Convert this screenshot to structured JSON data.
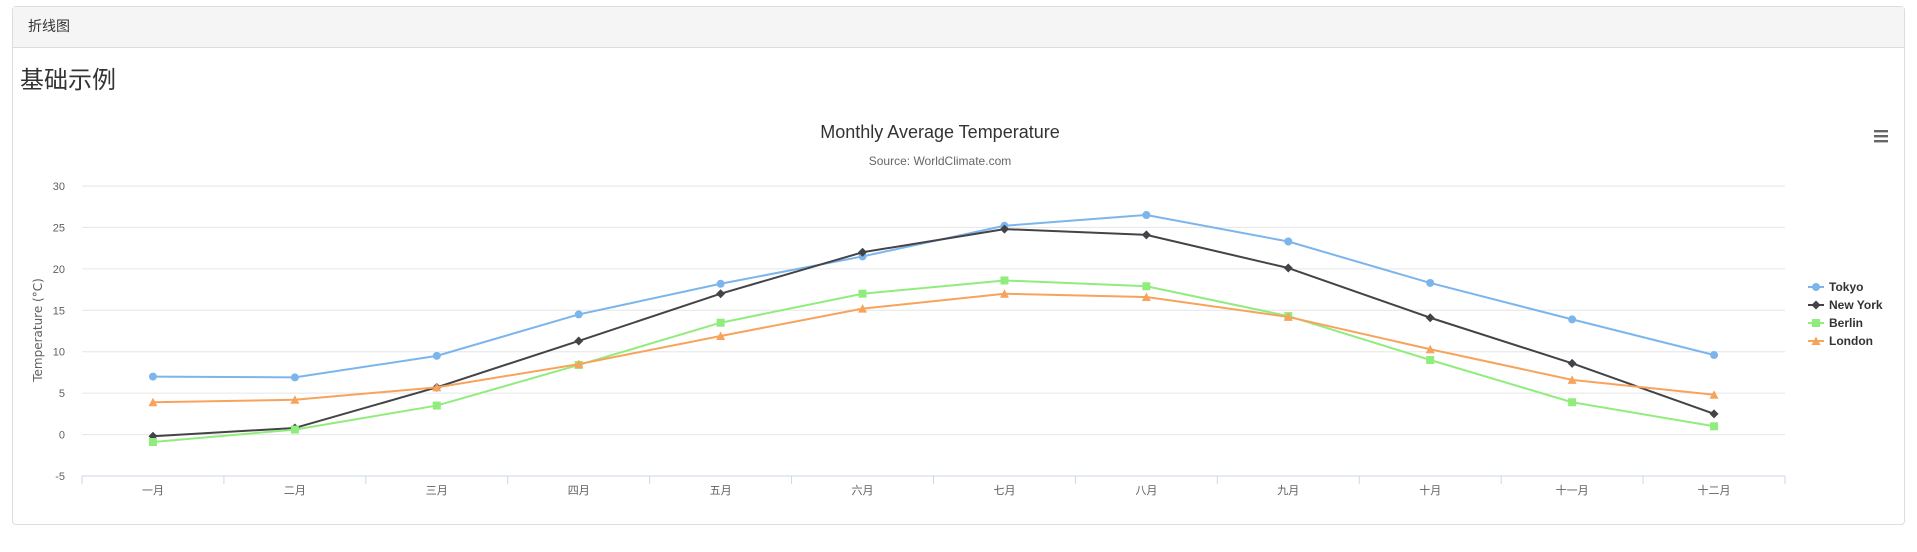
{
  "panel": {
    "heading": "折线图"
  },
  "section": {
    "title": "基础示例"
  },
  "menu": {
    "icon": "hamburger-menu-icon"
  },
  "chart_data": {
    "type": "line",
    "title": "Monthly Average Temperature",
    "subtitle": "Source: WorldClimate.com",
    "ylabel": "Temperature (°C)",
    "xlabel": "",
    "categories": [
      "一月",
      "二月",
      "三月",
      "四月",
      "五月",
      "六月",
      "七月",
      "八月",
      "九月",
      "十月",
      "十一月",
      "十二月"
    ],
    "yticks": [
      -5,
      0,
      5,
      10,
      15,
      20,
      25,
      30
    ],
    "ylim": [
      -5,
      30
    ],
    "grid": true,
    "legend_position": "right",
    "series": [
      {
        "name": "Tokyo",
        "color": "#7cb5ec",
        "marker": "circle",
        "values": [
          7.0,
          6.9,
          9.5,
          14.5,
          18.2,
          21.5,
          25.2,
          26.5,
          23.3,
          18.3,
          13.9,
          9.6
        ]
      },
      {
        "name": "New York",
        "color": "#434348",
        "marker": "diamond",
        "values": [
          -0.2,
          0.8,
          5.7,
          11.3,
          17.0,
          22.0,
          24.8,
          24.1,
          20.1,
          14.1,
          8.6,
          2.5
        ]
      },
      {
        "name": "Berlin",
        "color": "#90ed7d",
        "marker": "square",
        "values": [
          -0.9,
          0.6,
          3.5,
          8.4,
          13.5,
          17.0,
          18.6,
          17.9,
          14.3,
          9.0,
          3.9,
          1.0
        ]
      },
      {
        "name": "London",
        "color": "#f7a35c",
        "marker": "triangle",
        "values": [
          3.9,
          4.2,
          5.7,
          8.5,
          11.9,
          15.2,
          17.0,
          16.6,
          14.2,
          10.3,
          6.6,
          4.8
        ]
      }
    ]
  }
}
